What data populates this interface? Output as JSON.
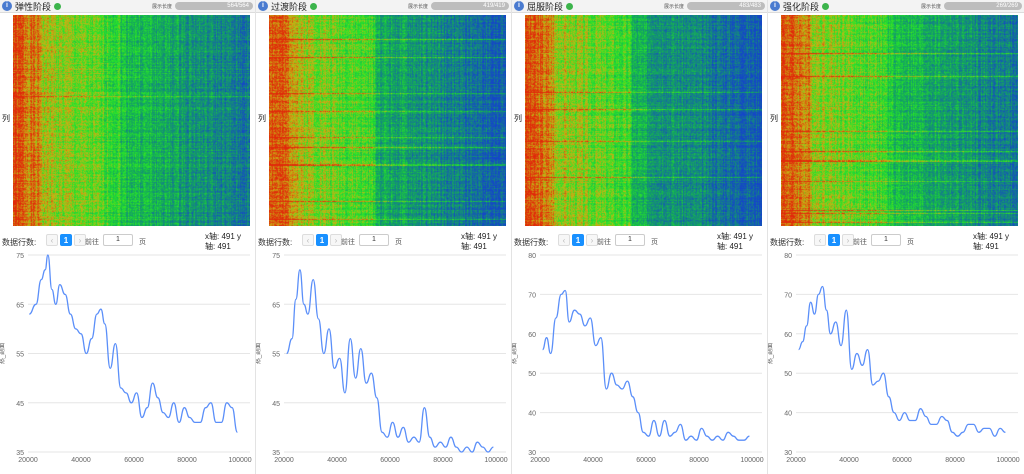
{
  "common": {
    "display_length_label": "展示长度",
    "rows_label": "数据行数:",
    "goto_label": "前往",
    "page_unit": "页",
    "page_current": "1",
    "page_input": "1",
    "prev_icon": "chevron-left-icon",
    "next_icon": "chevron-right-icon",
    "heat_side_label": "列",
    "axis_info_line1": "x轴: 491 y",
    "axis_info_line2": "轴: 491",
    "chart_ylabel": "热_剖面",
    "colors": {
      "accent": "#1890ff",
      "line": "#5b8ff9",
      "header_icon": "#4a7bd0",
      "status_ok": "#3cb44b"
    }
  },
  "panels": [
    {
      "title": "弹性阶段",
      "length": "564/564"
    },
    {
      "title": "过渡阶段",
      "length": "419/419"
    },
    {
      "title": "屈服阶段",
      "length": "483/483"
    },
    {
      "title": "强化阶段",
      "length": "269/269"
    }
  ],
  "chart_data": [
    {
      "type": "line",
      "ylabel": "热_剖面",
      "xlim": [
        20000,
        100000
      ],
      "ylim": [
        35,
        75
      ],
      "xticks": [
        "20000",
        "40000",
        "60000",
        "80000",
        "100000"
      ],
      "yticks": [
        "35",
        "45",
        "55",
        "65",
        "75"
      ],
      "x": [
        20500,
        23000,
        25000,
        26500,
        27500,
        29000,
        30500,
        32000,
        34000,
        36000,
        38000,
        40000,
        42000,
        44000,
        46000,
        47500,
        49000,
        51000,
        53000,
        55000,
        57000,
        59000,
        61000,
        63000,
        65000,
        67000,
        69000,
        71000,
        73000,
        75000,
        77000,
        79000,
        81000,
        83000,
        85000,
        87000,
        89000,
        91000,
        93000,
        95000,
        97000,
        99000
      ],
      "values": [
        63,
        65,
        70,
        72,
        75,
        68,
        65,
        69,
        67,
        63,
        60,
        59,
        55,
        58,
        63,
        64,
        61,
        52,
        57,
        48,
        47,
        45,
        47,
        42,
        44,
        49,
        46,
        43,
        42,
        45,
        41,
        44,
        42,
        41,
        41,
        44,
        45,
        41,
        41,
        45,
        44,
        39
      ]
    },
    {
      "type": "line",
      "ylabel": "热_剖面",
      "xlim": [
        20000,
        100000
      ],
      "ylim": [
        35,
        75
      ],
      "xticks": [
        "20000",
        "40000",
        "60000",
        "80000",
        "100000"
      ],
      "yticks": [
        "35",
        "45",
        "55",
        "65",
        "75"
      ],
      "x": [
        21000,
        23000,
        24500,
        26000,
        27500,
        29000,
        31000,
        33000,
        35000,
        37000,
        39000,
        41000,
        43000,
        45000,
        47000,
        49000,
        51000,
        53000,
        55000,
        57000,
        59000,
        61000,
        63000,
        65000,
        67000,
        69000,
        71000,
        73000,
        75000,
        77000,
        79000,
        81000,
        83000,
        85000,
        87000,
        89000,
        91000,
        93000,
        95000,
        97000,
        99000
      ],
      "values": [
        55,
        58,
        66,
        72,
        65,
        63,
        70,
        62,
        55,
        60,
        52,
        54,
        47,
        58,
        50,
        56,
        49,
        51,
        46,
        39,
        38,
        41,
        38,
        40,
        37,
        38,
        37,
        44,
        38,
        36,
        37,
        36,
        38,
        36,
        35,
        36,
        35,
        37,
        36,
        35,
        36
      ]
    },
    {
      "type": "line",
      "ylabel": "热_剖面",
      "xlim": [
        20000,
        100000
      ],
      "ylim": [
        30,
        80
      ],
      "xticks": [
        "20000",
        "40000",
        "60000",
        "80000",
        "100000"
      ],
      "yticks": [
        "30",
        "40",
        "50",
        "60",
        "70",
        "80"
      ],
      "x": [
        21000,
        22500,
        24000,
        26000,
        28000,
        29500,
        31000,
        33000,
        35000,
        37000,
        39000,
        41000,
        43000,
        45000,
        47000,
        49000,
        51000,
        53000,
        55000,
        57000,
        59000,
        61000,
        63000,
        65000,
        67000,
        69000,
        71000,
        73000,
        75000,
        77000,
        79000,
        81000,
        83000,
        85000,
        87000,
        89000,
        91000,
        93000,
        95000,
        97000,
        99000
      ],
      "values": [
        56,
        59,
        55,
        64,
        70,
        71,
        63,
        66,
        65,
        62,
        64,
        57,
        59,
        46,
        50,
        47,
        46,
        48,
        44,
        40,
        35,
        34,
        38,
        34,
        38,
        34,
        35,
        37,
        33,
        34,
        33,
        36,
        34,
        33,
        34,
        33,
        35,
        34,
        33,
        33,
        34
      ]
    },
    {
      "type": "line",
      "ylabel": "热_剖面",
      "xlim": [
        20000,
        100000
      ],
      "ylim": [
        30,
        80
      ],
      "xticks": [
        "20000",
        "40000",
        "60000",
        "80000",
        "100000"
      ],
      "yticks": [
        "30",
        "40",
        "50",
        "60",
        "70",
        "80"
      ],
      "x": [
        21000,
        22500,
        24000,
        25500,
        27000,
        28500,
        30000,
        31500,
        33000,
        35000,
        37000,
        39000,
        41000,
        43000,
        45000,
        47000,
        49000,
        51000,
        53000,
        55000,
        57000,
        59000,
        61000,
        63000,
        65000,
        67000,
        69000,
        71000,
        73000,
        75000,
        77000,
        79000,
        81000,
        83000,
        85000,
        87000,
        89000,
        91000,
        93000,
        95000,
        97000,
        99000
      ],
      "values": [
        56,
        58,
        62,
        68,
        65,
        70,
        72,
        66,
        60,
        63,
        57,
        66,
        51,
        55,
        52,
        56,
        47,
        48,
        50,
        44,
        40,
        38,
        40,
        38,
        38,
        41,
        39,
        37,
        37,
        39,
        38,
        35,
        34,
        35,
        37,
        37,
        35,
        36,
        36,
        34,
        36,
        35
      ]
    }
  ]
}
